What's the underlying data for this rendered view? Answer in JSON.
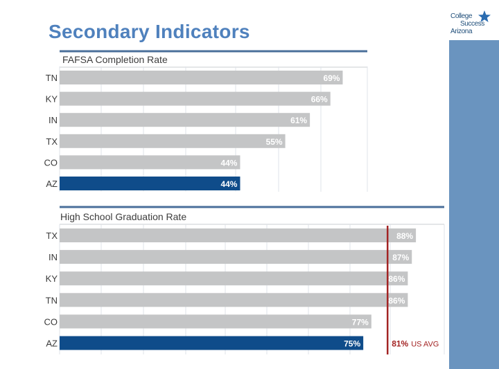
{
  "page": {
    "title": "Secondary Indicators",
    "logo": {
      "line1": "College",
      "line2": "Success",
      "line3": "Arizona"
    }
  },
  "colors": {
    "bar_gray": "#c4c5c6",
    "bar_highlight": "#0f4c8a",
    "title": "#4f81bd",
    "avg_line": "#a32424",
    "sidebar": "#6a94bf"
  },
  "chart_data": [
    {
      "type": "bar",
      "orientation": "horizontal",
      "title": "FAFSA Completion Rate",
      "categories": [
        "TN",
        "KY",
        "IN",
        "TX",
        "CO",
        "AZ"
      ],
      "values": [
        69,
        66,
        61,
        55,
        44,
        44
      ],
      "labels": [
        "69%",
        "66%",
        "61%",
        "55%",
        "44%",
        "44%"
      ],
      "highlight": "AZ",
      "xlim": [
        0,
        75
      ]
    },
    {
      "type": "bar",
      "orientation": "horizontal",
      "title": "High School Graduation Rate",
      "categories": [
        "TX",
        "IN",
        "KY",
        "TN",
        "CO",
        "AZ"
      ],
      "values": [
        88,
        87,
        86,
        86,
        77,
        75
      ],
      "labels": [
        "88%",
        "87%",
        "86%",
        "86%",
        "77%",
        "75%"
      ],
      "highlight": "AZ",
      "xlim": [
        0,
        95
      ],
      "reference_line": {
        "value": 81,
        "label_value": "81%",
        "label_text": "US AVG"
      }
    }
  ]
}
